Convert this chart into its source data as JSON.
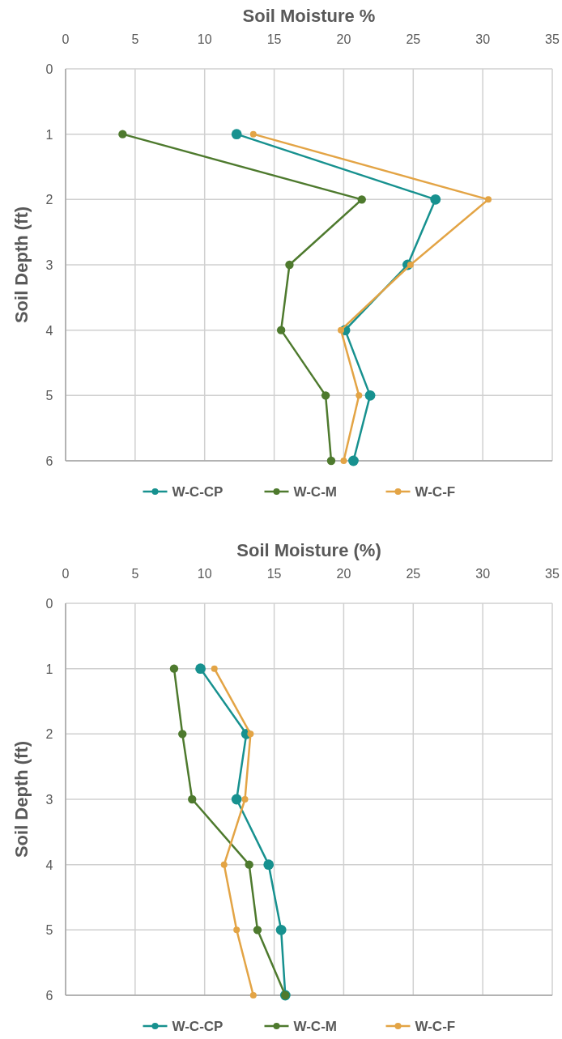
{
  "chart_data": [
    {
      "type": "line",
      "xlabel": "Soil Moisture %",
      "ylabel": "Soil Depth (ft)",
      "xlim": [
        0,
        35
      ],
      "xticks": [
        0,
        5,
        10,
        15,
        20,
        25,
        30,
        35
      ],
      "ylim": [
        6,
        0
      ],
      "yticks": [
        0,
        1,
        2,
        3,
        4,
        5,
        6
      ],
      "grid": true,
      "legend": "bottom",
      "marker": "circle",
      "series": [
        {
          "name": "W-C-CP",
          "color": "#17918f",
          "x": [
            12.3,
            26.6,
            24.6,
            20.1,
            21.9,
            20.7
          ],
          "values": [
            1,
            2,
            3,
            4,
            5,
            6
          ]
        },
        {
          "name": "W-C-M",
          "color": "#4e7a2e",
          "x": [
            4.1,
            21.3,
            16.1,
            15.5,
            18.7,
            19.1
          ],
          "values": [
            1,
            2,
            3,
            4,
            5,
            6
          ]
        },
        {
          "name": "W-C-F",
          "color": "#e3a445",
          "x": [
            13.5,
            30.4,
            24.8,
            19.8,
            21.1,
            20.0
          ],
          "values": [
            1,
            2,
            3,
            4,
            5,
            6
          ]
        }
      ]
    },
    {
      "type": "line",
      "xlabel": "Soil Moisture (%)",
      "ylabel": "Soil Depth (ft)",
      "xlim": [
        0,
        35
      ],
      "xticks": [
        0,
        5,
        10,
        15,
        20,
        25,
        30,
        35
      ],
      "ylim": [
        6,
        0
      ],
      "yticks": [
        0,
        1,
        2,
        3,
        4,
        5,
        6
      ],
      "grid": true,
      "legend": "bottom",
      "marker": "circle",
      "series": [
        {
          "name": "W-C-CP",
          "color": "#17918f",
          "x": [
            9.7,
            13.0,
            12.3,
            14.6,
            15.5,
            15.8
          ],
          "values": [
            1,
            2,
            3,
            4,
            5,
            6
          ]
        },
        {
          "name": "W-C-M",
          "color": "#4e7a2e",
          "x": [
            7.8,
            8.4,
            9.1,
            13.2,
            13.8,
            15.8
          ],
          "values": [
            1,
            2,
            3,
            4,
            5,
            6
          ]
        },
        {
          "name": "W-C-F",
          "color": "#e3a445",
          "x": [
            10.7,
            13.3,
            12.9,
            11.4,
            12.3,
            13.5
          ],
          "values": [
            1,
            2,
            3,
            4,
            5,
            6
          ]
        }
      ]
    }
  ]
}
